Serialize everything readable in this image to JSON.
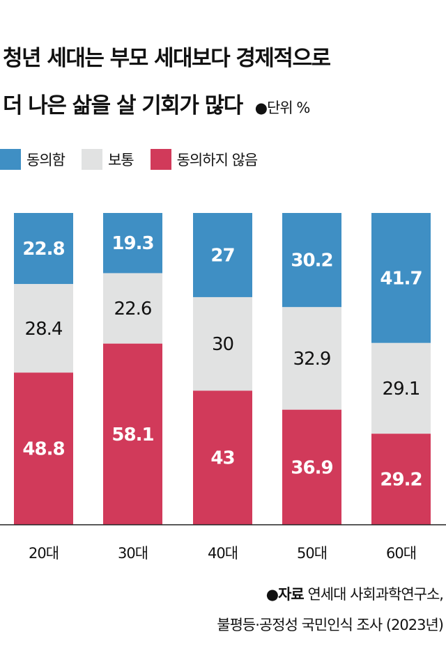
{
  "title_line1": "청년 세대는 부모 세대보다 경제적으로",
  "title_line2": "더 나은 삶을 살 기회가 많다",
  "unit": "●단위 %",
  "colors": {
    "agree": "#3f8fc4",
    "neutral": "#e1e2e2",
    "disagree": "#d13a5a"
  },
  "chart_data": {
    "type": "bar",
    "stacked": true,
    "categories": [
      "20대",
      "30대",
      "40대",
      "50대",
      "60대"
    ],
    "series": [
      {
        "name": "동의함",
        "values": [
          22.8,
          19.3,
          27,
          30.2,
          41.7
        ]
      },
      {
        "name": "보통",
        "values": [
          28.4,
          22.6,
          30,
          32.9,
          29.1
        ]
      },
      {
        "name": "동의하지 않음",
        "values": [
          48.8,
          58.1,
          43,
          36.9,
          29.2
        ]
      }
    ],
    "ylim": [
      0,
      100
    ],
    "legend": "top-left",
    "grid": false
  },
  "source_label": "●자료",
  "source_line1": "연세대 사회과학연구소,",
  "source_line2": "불평등·공정성 국민인식 조사 (2023년)"
}
